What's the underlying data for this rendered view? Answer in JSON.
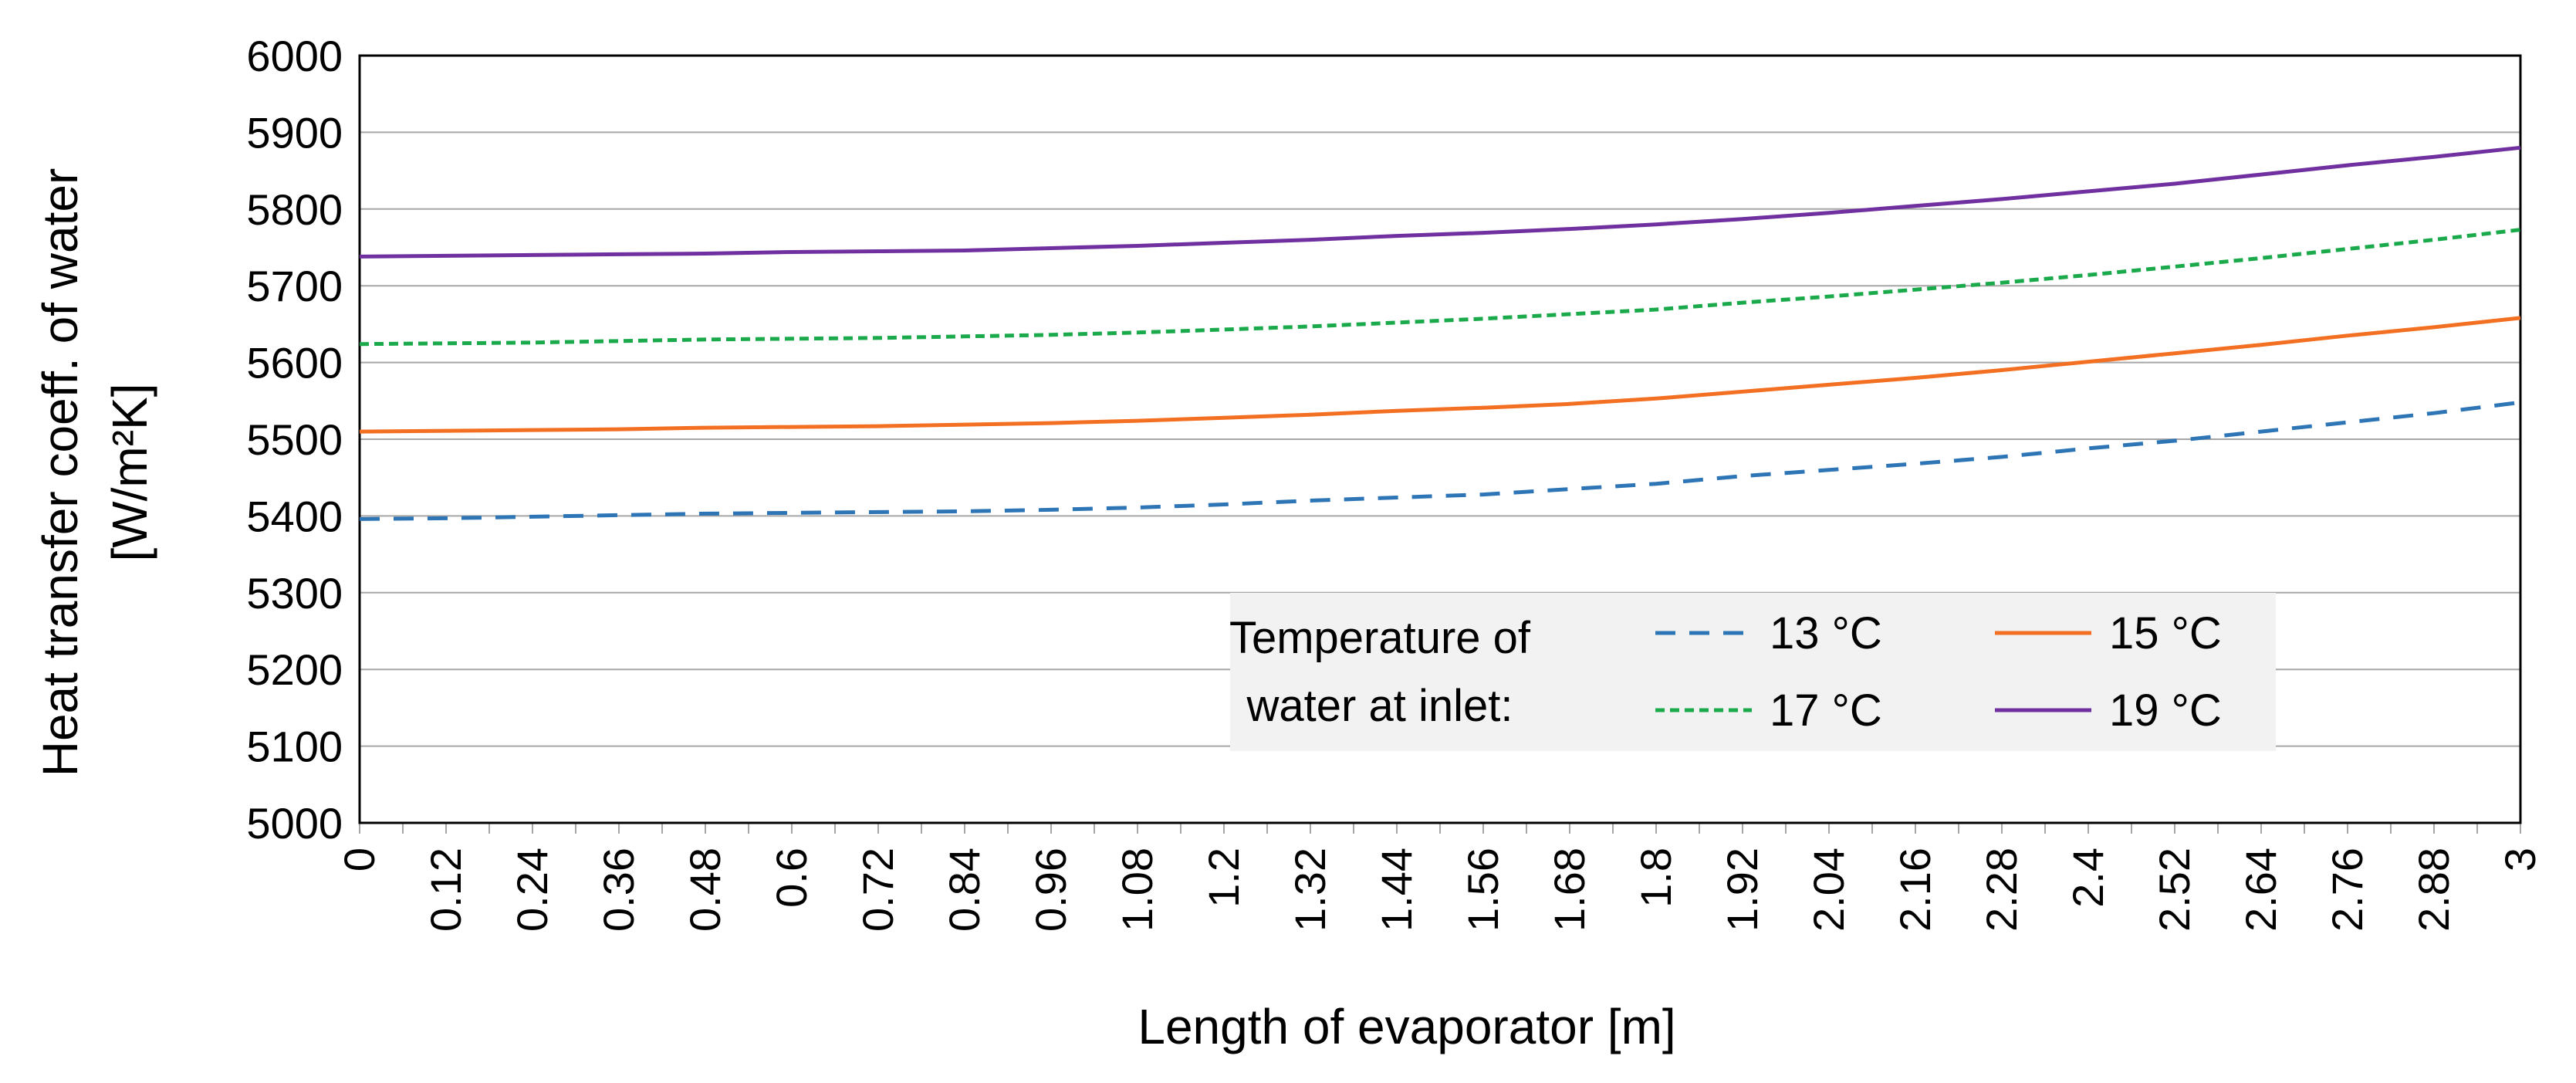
{
  "chart_data": {
    "type": "line",
    "title": "",
    "xlabel": "Length of evaporator [m]",
    "ylabel": "Heat transfer coeff. of water",
    "ylabel_units": "[W/m²K]",
    "ylim": [
      5000,
      6000
    ],
    "xlim": [
      0,
      3
    ],
    "yticks": [
      "5000",
      "5100",
      "5200",
      "5300",
      "5400",
      "5500",
      "5600",
      "5700",
      "5800",
      "5900",
      "6000"
    ],
    "xticks": [
      "0",
      "0.12",
      "0.24",
      "0.36",
      "0.48",
      "0.6",
      "0.72",
      "0.84",
      "0.96",
      "1.08",
      "1.2",
      "1.32",
      "1.44",
      "1.56",
      "1.68",
      "1.8",
      "1.92",
      "2.04",
      "2.16",
      "2.28",
      "2.4",
      "2.52",
      "2.64",
      "2.76",
      "2.88",
      "3"
    ],
    "grid": "horizontal",
    "legend_title_line1": "Temperature of",
    "legend_title_line2": "water at inlet:",
    "legend_position": "lower-center",
    "x": [
      0,
      0.12,
      0.24,
      0.36,
      0.48,
      0.6,
      0.72,
      0.84,
      0.96,
      1.08,
      1.2,
      1.32,
      1.44,
      1.56,
      1.68,
      1.8,
      1.92,
      2.04,
      2.16,
      2.28,
      2.4,
      2.52,
      2.64,
      2.76,
      2.88,
      3
    ],
    "series": [
      {
        "name": "13 °C",
        "color": "#2E75B6",
        "dash": "dashed",
        "values": [
          5396,
          5397,
          5399,
          5401,
          5403,
          5404,
          5405,
          5406,
          5408,
          5411,
          5415,
          5420,
          5424,
          5428,
          5435,
          5442,
          5452,
          5460,
          5468,
          5477,
          5488,
          5498,
          5510,
          5522,
          5534,
          5548
        ]
      },
      {
        "name": "15 °C",
        "color": "#F36F21",
        "dash": "solid",
        "values": [
          5510,
          5511,
          5512,
          5513,
          5515,
          5516,
          5517,
          5519,
          5521,
          5524,
          5528,
          5532,
          5537,
          5541,
          5546,
          5553,
          5562,
          5571,
          5580,
          5590,
          5601,
          5612,
          5623,
          5635,
          5646,
          5658
        ]
      },
      {
        "name": "17 °C",
        "color": "#1BAA4B",
        "dash": "dotted",
        "values": [
          5624,
          5625,
          5626,
          5628,
          5630,
          5631,
          5632,
          5634,
          5636,
          5639,
          5643,
          5647,
          5652,
          5657,
          5663,
          5669,
          5678,
          5686,
          5695,
          5704,
          5714,
          5725,
          5736,
          5748,
          5760,
          5773
        ]
      },
      {
        "name": "19 °C",
        "color": "#7030A0",
        "dash": "solid",
        "values": [
          5738,
          5739,
          5740,
          5741,
          5742,
          5744,
          5745,
          5746,
          5749,
          5752,
          5756,
          5760,
          5765,
          5769,
          5774,
          5780,
          5787,
          5795,
          5804,
          5813,
          5823,
          5833,
          5845,
          5857,
          5868,
          5880
        ]
      }
    ]
  }
}
